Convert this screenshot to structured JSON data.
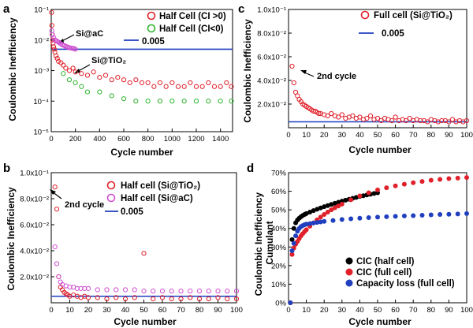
{
  "colors": {
    "red": "#e0202a",
    "green": "#2fb52f",
    "magenta": "#d04fd0",
    "blue": "#1f3fbf",
    "black": "#000000"
  },
  "chart_data": [
    {
      "id": "a",
      "type": "scatter",
      "panel_label": "a",
      "xlabel": "Cycle number",
      "ylabel": "Coulombic Inefficiency",
      "xlim": [
        0,
        1500
      ],
      "ylim": [
        1e-05,
        0.1
      ],
      "yscale": "log",
      "xticks": [
        0,
        200,
        400,
        600,
        800,
        1000,
        1200,
        1400
      ],
      "yticks": [
        {
          "v": 1e-05,
          "label": "10⁻⁵"
        },
        {
          "v": 0.0001,
          "label": "10⁻⁴"
        },
        {
          "v": 0.001,
          "label": "10⁻³"
        },
        {
          "v": 0.01,
          "label": "10⁻²"
        },
        {
          "v": 0.1,
          "label": "10⁻¹"
        }
      ],
      "legend_position": "top-right",
      "legend": [
        {
          "label": "Half Cell (CI >0)",
          "marker": "circle",
          "color": "#e0202a"
        },
        {
          "label": "Half Cell (CI<0)",
          "marker": "circle",
          "color": "#2fb52f"
        },
        {
          "label": "0.005",
          "marker": "line",
          "color": "#1f3fbf"
        }
      ],
      "annotations": [
        {
          "text": "Si@aC",
          "arrow": true
        },
        {
          "text": "Si@TiO₂",
          "arrow": true
        }
      ],
      "reference_line": {
        "y": 0.005,
        "color": "#1f3fbf"
      },
      "series": [
        {
          "name": "Si@TiO₂ Half Cell (CI >0)",
          "color": "#e0202a",
          "x": [
            3,
            5,
            8,
            12,
            15,
            20,
            25,
            30,
            40,
            50,
            60,
            80,
            100,
            120,
            150,
            180,
            200,
            250,
            300,
            350,
            400,
            450,
            500,
            550,
            600,
            650,
            700,
            750,
            800,
            850,
            900,
            950,
            1000,
            1050,
            1100,
            1150,
            1200,
            1250,
            1300,
            1350,
            1400,
            1450,
            1490
          ],
          "y": [
            0.08,
            0.03,
            0.015,
            0.01,
            0.008,
            0.006,
            0.005,
            0.004,
            0.003,
            0.0025,
            0.002,
            0.0018,
            0.0015,
            0.0012,
            0.001,
            0.0012,
            0.0009,
            0.0008,
            0.0007,
            0.0009,
            0.0006,
            0.0007,
            0.0005,
            0.0006,
            0.0005,
            0.0004,
            0.0005,
            0.0004,
            0.0004,
            0.0003,
            0.0004,
            0.0003,
            0.0004,
            0.0003,
            0.0003,
            0.0004,
            0.0003,
            0.0003,
            0.0004,
            0.0003,
            0.0003,
            0.0004,
            0.0003
          ]
        },
        {
          "name": "Half Cell (CI<0)",
          "color": "#2fb52f",
          "x": [
            100,
            150,
            200,
            250,
            300,
            400,
            500,
            600,
            700,
            800,
            900,
            1000,
            1100,
            1200,
            1300,
            1400,
            1490
          ],
          "y": [
            0.0008,
            0.0005,
            0.0004,
            0.0003,
            0.0002,
            0.0002,
            0.00015,
            0.00012,
            0.0001,
            0.0001,
            0.0001,
            0.0001,
            0.0001,
            0.0001,
            0.0001,
            0.0001,
            0.0001
          ]
        },
        {
          "name": "Si@aC",
          "color": "#d04fd0",
          "x": [
            5,
            10,
            20,
            30,
            40,
            50,
            60,
            70,
            80,
            90,
            100,
            110,
            120,
            130,
            140,
            150,
            160,
            170,
            180,
            190,
            200
          ],
          "y": [
            0.02,
            0.015,
            0.012,
            0.01,
            0.0095,
            0.009,
            0.0085,
            0.008,
            0.0075,
            0.007,
            0.0068,
            0.0065,
            0.0062,
            0.006,
            0.0058,
            0.0056,
            0.0055,
            0.0054,
            0.0053,
            0.0052,
            0.005
          ]
        }
      ]
    },
    {
      "id": "b",
      "type": "scatter",
      "panel_label": "b",
      "xlabel": "Cycle number",
      "ylabel": "Coulombic Inefficiency",
      "xlim": [
        0,
        100
      ],
      "ylim": [
        0,
        0.1
      ],
      "xticks": [
        0,
        10,
        20,
        30,
        40,
        50,
        60,
        70,
        80,
        90,
        100
      ],
      "yticks": [
        {
          "v": 0.02,
          "label": "2.0x10⁻²"
        },
        {
          "v": 0.04,
          "label": "4.0x10⁻²"
        },
        {
          "v": 0.06,
          "label": "6.0x10⁻²"
        },
        {
          "v": 0.08,
          "label": "8.0x10⁻²"
        },
        {
          "v": 0.1,
          "label": "1.0x10⁻¹"
        }
      ],
      "legend_position": "top-right",
      "legend": [
        {
          "label": "Half cell (Si@TiO₂)",
          "marker": "circle",
          "color": "#e0202a"
        },
        {
          "label": "Half cell (Si@aC)",
          "marker": "circle",
          "color": "#d04fd0"
        },
        {
          "label": "0.005",
          "marker": "line",
          "color": "#1f3fbf"
        }
      ],
      "annotations": [
        {
          "text": "2nd cycle",
          "arrow": true
        }
      ],
      "reference_line": {
        "y": 0.005,
        "color": "#1f3fbf"
      },
      "series": [
        {
          "name": "Half cell (Si@TiO₂)",
          "color": "#e0202a",
          "x": [
            2,
            3,
            4,
            5,
            6,
            7,
            8,
            9,
            10,
            12,
            14,
            16,
            18,
            20,
            25,
            30,
            35,
            40,
            45,
            50,
            55,
            60,
            65,
            70,
            75,
            80,
            85,
            90,
            95,
            100
          ],
          "y": [
            0.089,
            0.072,
            0.02,
            0.012,
            0.01,
            0.008,
            0.007,
            0.006,
            0.005,
            0.006,
            0.005,
            0.004,
            0.005,
            0.004,
            0.004,
            0.003,
            0.004,
            0.003,
            0.004,
            0.038,
            0.003,
            0.004,
            0.003,
            0.003,
            0.004,
            0.003,
            0.003,
            0.004,
            0.003,
            0.003
          ]
        },
        {
          "name": "Half cell (Si@aC)",
          "color": "#d04fd0",
          "x": [
            2,
            3,
            4,
            5,
            6,
            8,
            10,
            12,
            14,
            16,
            18,
            20,
            25,
            30,
            35,
            40,
            45,
            50,
            55,
            60,
            65,
            70,
            75,
            80,
            85,
            90,
            95,
            100
          ],
          "y": [
            0.043,
            0.03,
            0.02,
            0.016,
            0.014,
            0.013,
            0.012,
            0.012,
            0.011,
            0.011,
            0.011,
            0.011,
            0.01,
            0.01,
            0.01,
            0.01,
            0.01,
            0.009,
            0.009,
            0.009,
            0.009,
            0.009,
            0.009,
            0.009,
            0.009,
            0.009,
            0.009,
            0.009
          ]
        }
      ]
    },
    {
      "id": "c",
      "type": "scatter",
      "panel_label": "c",
      "xlabel": "Cycle number",
      "ylabel": "Coulombic Inefficiency",
      "xlim": [
        0,
        100
      ],
      "ylim": [
        0,
        0.1
      ],
      "xticks": [
        0,
        10,
        20,
        30,
        40,
        50,
        60,
        70,
        80,
        90,
        100
      ],
      "yticks": [
        {
          "v": 0.02,
          "label": "2.0x10⁻²"
        },
        {
          "v": 0.04,
          "label": "4.0x10⁻²"
        },
        {
          "v": 0.06,
          "label": "6.0x10⁻²"
        },
        {
          "v": 0.08,
          "label": "8.0x10⁻²"
        },
        {
          "v": 0.1,
          "label": "1.0x10⁻¹"
        }
      ],
      "legend_position": "top-right",
      "legend": [
        {
          "label": "Full cell (Si@TiO₂)",
          "marker": "circle",
          "color": "#e0202a"
        },
        {
          "label": "0.005",
          "marker": "line",
          "color": "#1f3fbf"
        }
      ],
      "annotations": [
        {
          "text": "2nd cycle",
          "arrow": true
        }
      ],
      "reference_line": {
        "y": 0.005,
        "color": "#1f3fbf"
      },
      "series": [
        {
          "name": "Full cell (Si@TiO₂)",
          "color": "#e0202a",
          "x": [
            2,
            3,
            4,
            5,
            6,
            7,
            8,
            9,
            10,
            11,
            12,
            13,
            14,
            15,
            16,
            17,
            18,
            20,
            22,
            24,
            26,
            28,
            30,
            32,
            34,
            36,
            38,
            40,
            42,
            44,
            46,
            48,
            50,
            52,
            54,
            56,
            58,
            60,
            62,
            64,
            66,
            68,
            70,
            72,
            74,
            76,
            78,
            80,
            82,
            84,
            86,
            88,
            90,
            92,
            94,
            96,
            98,
            100
          ],
          "y": [
            0.052,
            0.038,
            0.03,
            0.027,
            0.024,
            0.022,
            0.02,
            0.019,
            0.018,
            0.017,
            0.016,
            0.015,
            0.014,
            0.014,
            0.013,
            0.012,
            0.012,
            0.011,
            0.01,
            0.012,
            0.01,
            0.009,
            0.011,
            0.008,
            0.009,
            0.01,
            0.008,
            0.009,
            0.007,
            0.008,
            0.01,
            0.007,
            0.008,
            0.006,
            0.008,
            0.007,
            0.006,
            0.009,
            0.006,
            0.007,
            0.006,
            0.008,
            0.006,
            0.007,
            0.006,
            0.006,
            0.005,
            0.007,
            0.006,
            0.005,
            0.006,
            0.006,
            0.005,
            0.007,
            0.005,
            0.006,
            0.005,
            0.006
          ]
        }
      ]
    },
    {
      "id": "d",
      "type": "scatter",
      "panel_label": "d",
      "xlabel": "Cycle number",
      "ylabel": "Coulombic Inefficiency\nCumulant",
      "xlim": [
        0,
        100
      ],
      "ylim": [
        0,
        70
      ],
      "xticks": [
        0,
        10,
        20,
        30,
        40,
        50,
        60,
        70,
        80,
        90,
        100
      ],
      "yticks": [
        {
          "v": 0,
          "label": "0%"
        },
        {
          "v": 10,
          "label": "10%"
        },
        {
          "v": 20,
          "label": "20%"
        },
        {
          "v": 30,
          "label": "30%"
        },
        {
          "v": 40,
          "label": "40%"
        },
        {
          "v": 50,
          "label": "50%"
        },
        {
          "v": 60,
          "label": "60%"
        },
        {
          "v": 70,
          "label": "70%"
        }
      ],
      "legend_position": "bottom-right",
      "legend": [
        {
          "label": "CIC (half cell)",
          "marker": "dot",
          "color": "#000000"
        },
        {
          "label": "CIC (full cell)",
          "marker": "dot",
          "color": "#e0202a"
        },
        {
          "label": "Capacity loss (full cell)",
          "marker": "dot",
          "color": "#1f3fbf"
        }
      ],
      "series": [
        {
          "name": "CIC (half cell)",
          "color": "#000000",
          "x": [
            1,
            2,
            3,
            4,
            5,
            6,
            7,
            8,
            9,
            10,
            12,
            14,
            16,
            18,
            20,
            22,
            24,
            26,
            28,
            30,
            32,
            34,
            36,
            38,
            40,
            42,
            44,
            46,
            48,
            50
          ],
          "y": [
            0,
            34,
            40,
            43,
            44.5,
            45.5,
            46.3,
            47,
            47.5,
            48,
            48.8,
            49.6,
            50.3,
            51,
            51.7,
            52.3,
            52.9,
            53.5,
            54.1,
            54.7,
            55.2,
            55.7,
            56.2,
            56.7,
            57.2,
            57.6,
            58,
            58.4,
            58.8,
            59.2
          ]
        },
        {
          "name": "CIC (full cell)",
          "color": "#e0202a",
          "x": [
            1,
            2,
            3,
            4,
            5,
            6,
            7,
            8,
            9,
            10,
            12,
            14,
            16,
            18,
            20,
            22,
            24,
            26,
            28,
            30,
            35,
            40,
            45,
            50,
            55,
            60,
            65,
            70,
            75,
            80,
            85,
            90,
            95,
            100
          ],
          "y": [
            0,
            26,
            29.5,
            31.5,
            33,
            34.5,
            36,
            37.2,
            38.3,
            39.3,
            41.2,
            43,
            44.6,
            46.1,
            47.5,
            48.8,
            50,
            51.1,
            52.1,
            53.1,
            55.4,
            57.5,
            59.2,
            60.7,
            61.9,
            62.9,
            63.8,
            64.6,
            65.3,
            65.9,
            66.4,
            66.8,
            67.1,
            67.4
          ]
        },
        {
          "name": "Capacity loss (full cell)",
          "color": "#1f3fbf",
          "x": [
            1,
            2,
            3,
            4,
            5,
            6,
            7,
            8,
            9,
            10,
            12,
            14,
            16,
            18,
            20,
            25,
            30,
            35,
            40,
            45,
            50,
            55,
            60,
            65,
            70,
            75,
            80,
            85,
            90,
            95,
            100
          ],
          "y": [
            0,
            28,
            32,
            36,
            38.5,
            40,
            41,
            41.5,
            42,
            42.3,
            42.6,
            42.9,
            43.2,
            43.5,
            43.8,
            44.3,
            44.8,
            45.2,
            45.5,
            45.8,
            46.1,
            46.3,
            46.5,
            46.7,
            46.9,
            47.1,
            47.3,
            47.5,
            47.6,
            47.8,
            48
          ]
        }
      ]
    }
  ]
}
